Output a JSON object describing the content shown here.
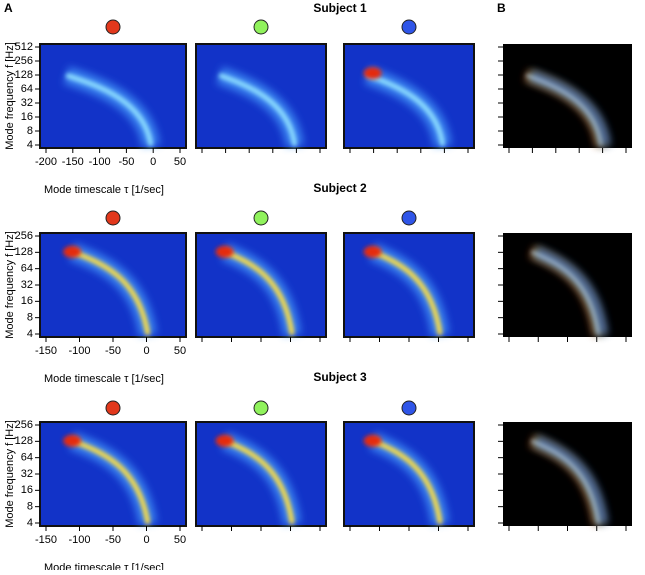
{
  "panel_labels": [
    "A",
    "B"
  ],
  "chart_data": [
    {
      "type": "heatmap",
      "title": "Subject 1",
      "xlabel": "Mode timescale τ [1/sec]",
      "ylabel": "Mode frequency f [Hz]",
      "xlim": [
        -200,
        50
      ],
      "xticks": [
        -200,
        -150,
        -100,
        -50,
        0,
        50
      ],
      "ylim": [
        4,
        512
      ],
      "yticks": [
        4,
        8,
        16,
        32,
        64,
        128,
        256,
        512
      ],
      "log_y": true,
      "colors": [
        "#e2381c",
        "#90f25c",
        "#2f55e8"
      ]
    },
    {
      "type": "heatmap",
      "title": "Subject 2",
      "xlabel": "Mode timescale τ [1/sec]",
      "ylabel": "Mode frequency f [Hz]",
      "xlim": [
        -150,
        50
      ],
      "xticks": [
        -150,
        -100,
        -50,
        0,
        50
      ],
      "ylim": [
        4,
        256
      ],
      "yticks": [
        4,
        8,
        16,
        32,
        64,
        128,
        256
      ],
      "log_y": true,
      "colors": [
        "#e2381c",
        "#90f25c",
        "#2f55e8"
      ]
    },
    {
      "type": "heatmap",
      "title": "Subject 3",
      "xlabel": "Mode timescale τ [1/sec]",
      "ylabel": "Mode frequency f [Hz]",
      "xlim": [
        -150,
        50
      ],
      "xticks": [
        -150,
        -100,
        -50,
        0,
        50
      ],
      "ylim": [
        4,
        256
      ],
      "yticks": [
        4,
        8,
        16,
        32,
        64,
        128,
        256
      ],
      "log_y": true,
      "colors": [
        "#e2381c",
        "#90f25c",
        "#2f55e8"
      ]
    }
  ]
}
